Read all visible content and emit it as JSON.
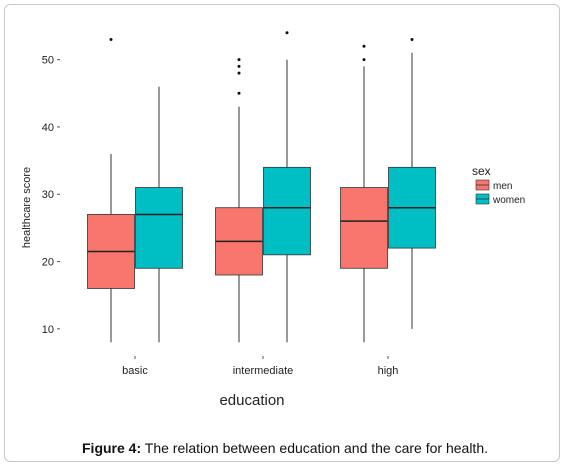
{
  "caption": {
    "label": "Figure 4:",
    "text": " The relation between education and the care for health."
  },
  "chart_data": {
    "type": "box",
    "xlabel": "education",
    "ylabel": "healthcare score",
    "categories": [
      "basic",
      "intermediate",
      "high"
    ],
    "y_ticks": [
      10,
      20,
      30,
      40,
      50
    ],
    "ylim": [
      7.6,
      55
    ],
    "legend": {
      "title": "sex",
      "position": "right"
    },
    "grid": false,
    "series": [
      {
        "name": "men",
        "color": "#F8766D",
        "boxes": [
          {
            "min": 8,
            "q1": 16,
            "median": 21.5,
            "q3": 27,
            "max": 36,
            "outliers": [
              53
            ]
          },
          {
            "min": 8,
            "q1": 18,
            "median": 23,
            "q3": 28,
            "max": 43,
            "outliers": [
              45,
              48,
              49,
              50
            ]
          },
          {
            "min": 8,
            "q1": 19,
            "median": 26,
            "q3": 31,
            "max": 49,
            "outliers": [
              50,
              52
            ]
          }
        ]
      },
      {
        "name": "women",
        "color": "#00BFC4",
        "boxes": [
          {
            "min": 8,
            "q1": 19,
            "median": 27,
            "q3": 31,
            "max": 46,
            "outliers": []
          },
          {
            "min": 8,
            "q1": 21,
            "median": 28,
            "q3": 34,
            "max": 50,
            "outliers": [
              54
            ]
          },
          {
            "min": 10,
            "q1": 22,
            "median": 28,
            "q3": 34,
            "max": 51,
            "outliers": [
              53
            ]
          }
        ]
      }
    ]
  }
}
